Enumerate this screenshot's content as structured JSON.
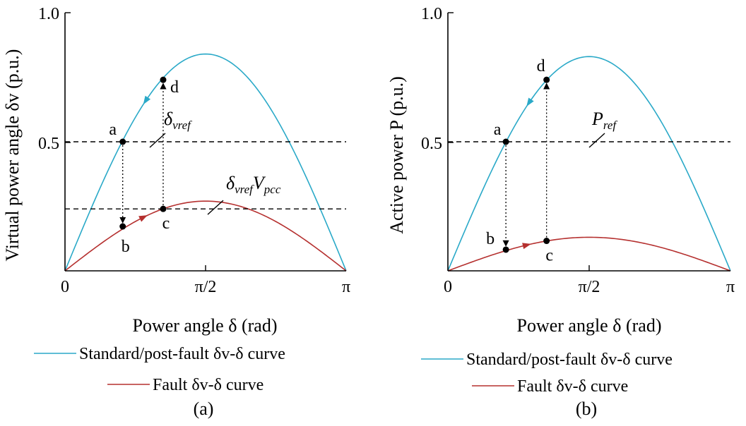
{
  "chart_data": [
    {
      "panel_label": "(a)",
      "type": "line",
      "ylabel": "Virtual power angle δv (p.u.)",
      "xlabel": "Power angle δ (rad)",
      "y_ticks": [
        "0.5",
        "1.0"
      ],
      "x_ticks": [
        "0",
        "π/2",
        "π"
      ],
      "xlim": [
        0,
        3.1416
      ],
      "ylim": [
        0,
        1.0
      ],
      "legend": [
        "Standard/post-fault δv-δ curve",
        "Fault δv-δ curve"
      ],
      "series": [
        {
          "name": "Standard/post-fault δv-δ curve",
          "color": "#2aa9c8",
          "peak": 0.84
        },
        {
          "name": "Fault δv-δ curve",
          "color": "#b5302f",
          "peak": 0.27
        }
      ],
      "hlines": [
        {
          "label": "δvref",
          "y": 0.5
        },
        {
          "label": "δvrefVpcc",
          "y": 0.24
        }
      ],
      "points": [
        {
          "label": "a",
          "x": 0.645,
          "y": 0.5
        },
        {
          "label": "b",
          "x": 0.645,
          "y": 0.172
        },
        {
          "label": "c",
          "x": 1.097,
          "y": 0.24
        },
        {
          "label": "d",
          "x": 1.097,
          "y": 0.74
        }
      ]
    },
    {
      "panel_label": "(b)",
      "type": "line",
      "ylabel": "Active power P (p.u.)",
      "xlabel": "Power angle δ (rad)",
      "y_ticks": [
        "0.5",
        "1.0"
      ],
      "x_ticks": [
        "0",
        "π/2",
        "π"
      ],
      "xlim": [
        0,
        3.1416
      ],
      "ylim": [
        0,
        1.0
      ],
      "legend": [
        "Standard/post-fault δv-δ curve",
        "Fault δv-δ curve"
      ],
      "series": [
        {
          "name": "Standard/post-fault δv-δ curve",
          "color": "#2aa9c8",
          "peak": 0.83
        },
        {
          "name": "Fault δv-δ curve",
          "color": "#b5302f",
          "peak": 0.13
        }
      ],
      "hlines": [
        {
          "label": "Pref",
          "y": 0.5
        }
      ],
      "points": [
        {
          "label": "a",
          "x": 0.645,
          "y": 0.5
        },
        {
          "label": "b",
          "x": 0.645,
          "y": 0.082
        },
        {
          "label": "c",
          "x": 1.097,
          "y": 0.116
        },
        {
          "label": "d",
          "x": 1.097,
          "y": 0.74
        }
      ]
    }
  ]
}
